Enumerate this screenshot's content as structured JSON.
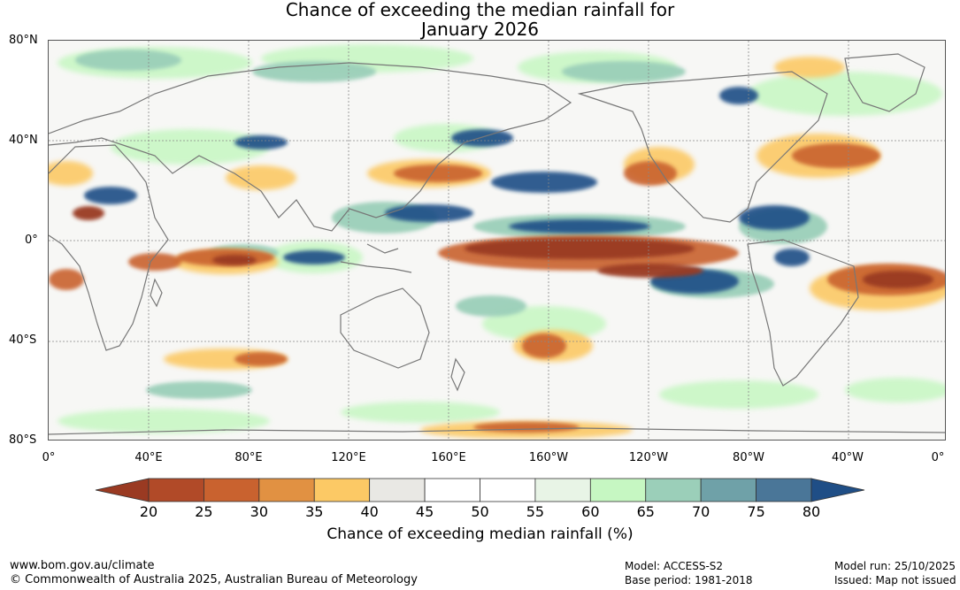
{
  "title": {
    "line1": "Chance of exceeding the median rainfall for",
    "line2": "January 2026"
  },
  "latitude_labels": [
    "80°N",
    "40°N",
    "0°",
    "40°S",
    "80°S"
  ],
  "longitude_labels": [
    "0°",
    "40°E",
    "80°E",
    "120°E",
    "160°E",
    "160°W",
    "120°W",
    "80°W",
    "40°W",
    "0°"
  ],
  "colorbar": {
    "ticks": [
      "20",
      "25",
      "30",
      "35",
      "40",
      "45",
      "50",
      "55",
      "60",
      "65",
      "70",
      "75",
      "80"
    ],
    "colors": [
      "#9a3a22",
      "#b14a28",
      "#c9622f",
      "#e19142",
      "#fcc965",
      "#e9e8e4",
      "#ffffff",
      "#ffffff",
      "#e8f4e6",
      "#c6f7c2",
      "#9bcfb9",
      "#6fa1a8",
      "#4a7698",
      "#1f4e86"
    ],
    "label": "Chance of exceeding median rainfall (%)"
  },
  "footer": {
    "url": "www.bom.gov.au/climate",
    "copyright": "© Commonwealth of Australia 2025, Australian Bureau of Meteorology",
    "model": "Model: ACCESS-S2",
    "base_period": "Base period: 1981-2018",
    "model_run": "Model run: 25/10/2025",
    "issued": "Issued: Map not issued"
  },
  "map_layers": {
    "dry_strong": "#9a3a22",
    "dry": "#c9622f",
    "dry_mild": "#fcc965",
    "wet_mild": "#c6f7c2",
    "wet": "#9bcfb9",
    "wet_strong": "#1f4e86",
    "coast": "#777777"
  }
}
